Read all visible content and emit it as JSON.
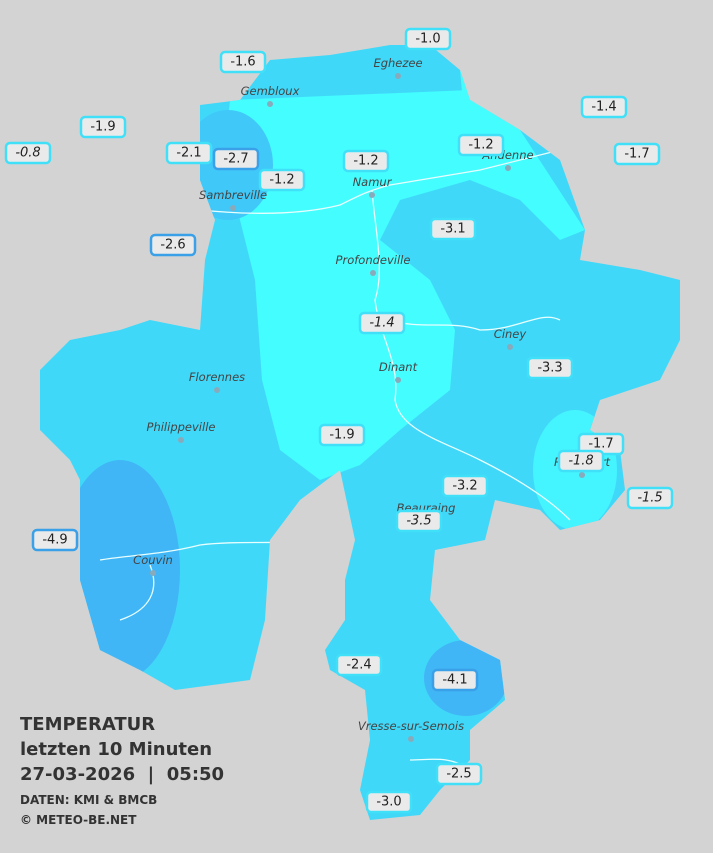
{
  "title": {
    "lines": [
      "TEMPERATUR",
      "letzten 10 Minuten",
      "27-03-2026  |  05:50"
    ],
    "credits": [
      "DATEN: KMI & BMCB",
      "© METEO-BE.NET"
    ]
  },
  "places": [
    "Eghezee",
    "Gembloux",
    "Andenne",
    "Namur",
    "Sambreville",
    "Profondeville",
    "Ciney",
    "Dinant",
    "Florennes",
    "Philippeville",
    "Rochefort",
    "Beauraing",
    "Couvin",
    "Vresse-sur-Semois"
  ],
  "stations": [
    "-1.0",
    "-1.6",
    "-1.4",
    "-1.9",
    "-2.1",
    "-2.7",
    "-1.2",
    "-1.2",
    "-1.7",
    "-0.8",
    "-1.2",
    "-2.6",
    "-3.1",
    "-1.4",
    "-3.3",
    "-1.9",
    "-1.7",
    "-1.8",
    "-3.2",
    "-1.5",
    "-3.5",
    "-4.9",
    "-2.4",
    "-4.1",
    "-2.5",
    "-3.0"
  ]
}
